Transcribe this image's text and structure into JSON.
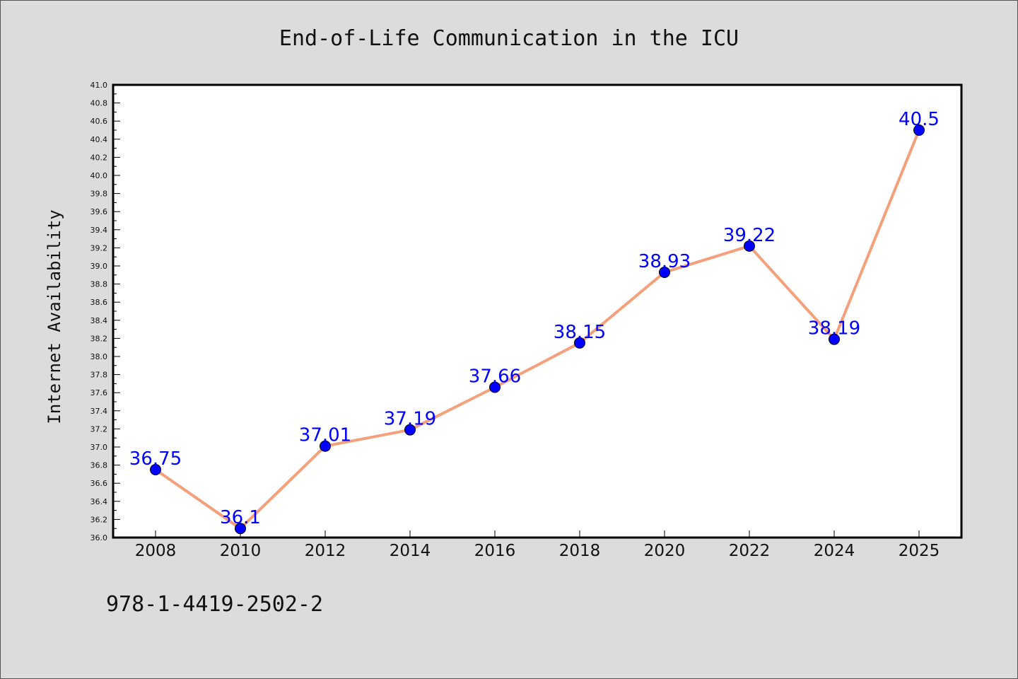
{
  "chart_data": {
    "type": "line",
    "title": "End-of-Life Communication in the ICU",
    "xlabel": "",
    "ylabel": "Internet Availability",
    "categories": [
      "2008",
      "2010",
      "2012",
      "2014",
      "2016",
      "2018",
      "2020",
      "2022",
      "2024",
      "2025"
    ],
    "series": [
      {
        "values": [
          36.75,
          36.1,
          37.01,
          37.19,
          37.66,
          38.15,
          38.93,
          39.22,
          38.19,
          40.5
        ],
        "labels": [
          "36.75",
          "36.1",
          "37.01",
          "37.19",
          "37.66",
          "38.15",
          "38.93",
          "39.22",
          "38.19",
          "40.5"
        ],
        "line_color": "#f4a07a",
        "marker_color": "#0000ff"
      }
    ],
    "ylim": [
      36.0,
      41.0
    ],
    "ytick_step": 0.2,
    "grid": false,
    "legend": "none",
    "background": "#dcdcdc",
    "plot_background": "#ffffff"
  },
  "footer": {
    "isbn": "978-1-4419-2502-2"
  }
}
